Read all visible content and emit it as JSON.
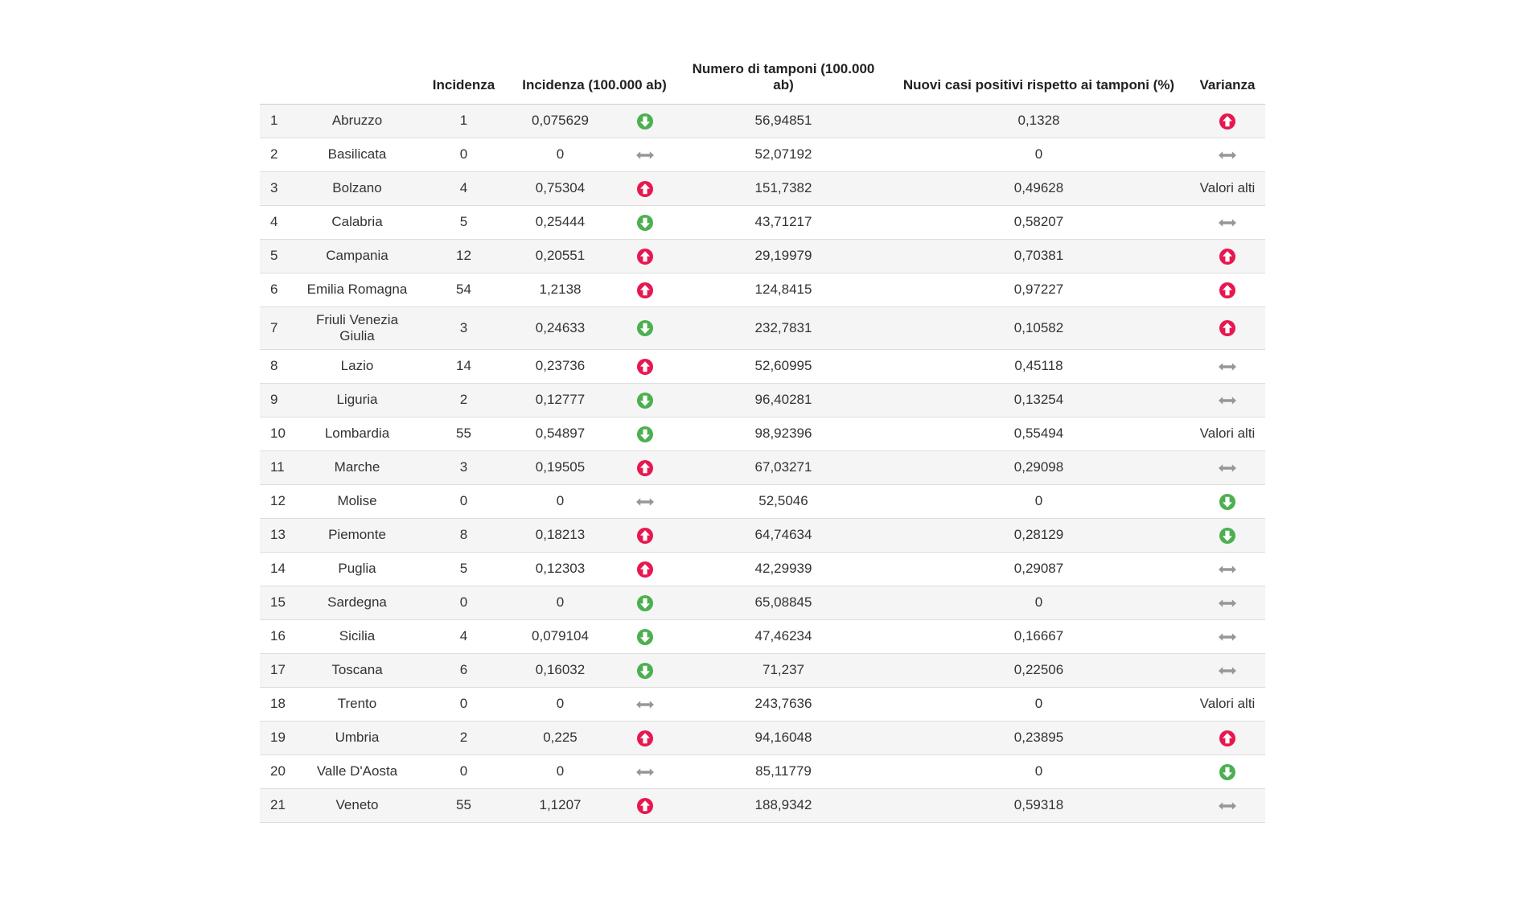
{
  "table": {
    "headers": {
      "incidenza": "Incidenza",
      "incidenza_100k": "Incidenza (100.000 ab)",
      "tamponi": "Numero di tamponi (100.000 ab)",
      "nuovi_casi": "Nuovi casi positivi rispetto ai tamponi (%)",
      "varianza": "Varianza"
    },
    "high_values_label": "Valori alti",
    "status_colors": {
      "up": "#e8174f",
      "down": "#4caf50",
      "stable": "#979797"
    },
    "icon_names": {
      "up": "arrow-circle-up-icon",
      "down": "arrow-circle-down-icon",
      "stable": "arrows-horizontal-icon"
    },
    "rows": [
      {
        "index": "1",
        "region": "Abruzzo",
        "incidenza": "1",
        "incidenza_100k": "0,075629",
        "trend": "down",
        "tamponi": "56,94851",
        "nuovi_casi": "0,1328",
        "varianza": "up"
      },
      {
        "index": "2",
        "region": "Basilicata",
        "incidenza": "0",
        "incidenza_100k": "0",
        "trend": "stable",
        "tamponi": "52,07192",
        "nuovi_casi": "0",
        "varianza": "stable"
      },
      {
        "index": "3",
        "region": "Bolzano",
        "incidenza": "4",
        "incidenza_100k": "0,75304",
        "trend": "up",
        "tamponi": "151,7382",
        "nuovi_casi": "0,49628",
        "varianza": "valori-alti"
      },
      {
        "index": "4",
        "region": "Calabria",
        "incidenza": "5",
        "incidenza_100k": "0,25444",
        "trend": "down",
        "tamponi": "43,71217",
        "nuovi_casi": "0,58207",
        "varianza": "stable"
      },
      {
        "index": "5",
        "region": "Campania",
        "incidenza": "12",
        "incidenza_100k": "0,20551",
        "trend": "up",
        "tamponi": "29,19979",
        "nuovi_casi": "0,70381",
        "varianza": "up"
      },
      {
        "index": "6",
        "region": "Emilia Romagna",
        "incidenza": "54",
        "incidenza_100k": "1,2138",
        "trend": "up",
        "tamponi": "124,8415",
        "nuovi_casi": "0,97227",
        "varianza": "up"
      },
      {
        "index": "7",
        "region": "Friuli Venezia Giulia",
        "incidenza": "3",
        "incidenza_100k": "0,24633",
        "trend": "down",
        "tamponi": "232,7831",
        "nuovi_casi": "0,10582",
        "varianza": "up"
      },
      {
        "index": "8",
        "region": "Lazio",
        "incidenza": "14",
        "incidenza_100k": "0,23736",
        "trend": "up",
        "tamponi": "52,60995",
        "nuovi_casi": "0,45118",
        "varianza": "stable"
      },
      {
        "index": "9",
        "region": "Liguria",
        "incidenza": "2",
        "incidenza_100k": "0,12777",
        "trend": "down",
        "tamponi": "96,40281",
        "nuovi_casi": "0,13254",
        "varianza": "stable"
      },
      {
        "index": "10",
        "region": "Lombardia",
        "incidenza": "55",
        "incidenza_100k": "0,54897",
        "trend": "down",
        "tamponi": "98,92396",
        "nuovi_casi": "0,55494",
        "varianza": "valori-alti"
      },
      {
        "index": "11",
        "region": "Marche",
        "incidenza": "3",
        "incidenza_100k": "0,19505",
        "trend": "up",
        "tamponi": "67,03271",
        "nuovi_casi": "0,29098",
        "varianza": "stable"
      },
      {
        "index": "12",
        "region": "Molise",
        "incidenza": "0",
        "incidenza_100k": "0",
        "trend": "stable",
        "tamponi": "52,5046",
        "nuovi_casi": "0",
        "varianza": "down"
      },
      {
        "index": "13",
        "region": "Piemonte",
        "incidenza": "8",
        "incidenza_100k": "0,18213",
        "trend": "up",
        "tamponi": "64,74634",
        "nuovi_casi": "0,28129",
        "varianza": "down"
      },
      {
        "index": "14",
        "region": "Puglia",
        "incidenza": "5",
        "incidenza_100k": "0,12303",
        "trend": "up",
        "tamponi": "42,29939",
        "nuovi_casi": "0,29087",
        "varianza": "stable"
      },
      {
        "index": "15",
        "region": "Sardegna",
        "incidenza": "0",
        "incidenza_100k": "0",
        "trend": "down",
        "tamponi": "65,08845",
        "nuovi_casi": "0",
        "varianza": "stable"
      },
      {
        "index": "16",
        "region": "Sicilia",
        "incidenza": "4",
        "incidenza_100k": "0,079104",
        "trend": "down",
        "tamponi": "47,46234",
        "nuovi_casi": "0,16667",
        "varianza": "stable"
      },
      {
        "index": "17",
        "region": "Toscana",
        "incidenza": "6",
        "incidenza_100k": "0,16032",
        "trend": "down",
        "tamponi": "71,237",
        "nuovi_casi": "0,22506",
        "varianza": "stable"
      },
      {
        "index": "18",
        "region": "Trento",
        "incidenza": "0",
        "incidenza_100k": "0",
        "trend": "stable",
        "tamponi": "243,7636",
        "nuovi_casi": "0",
        "varianza": "valori-alti"
      },
      {
        "index": "19",
        "region": "Umbria",
        "incidenza": "2",
        "incidenza_100k": "0,225",
        "trend": "up",
        "tamponi": "94,16048",
        "nuovi_casi": "0,23895",
        "varianza": "up"
      },
      {
        "index": "20",
        "region": "Valle D'Aosta",
        "incidenza": "0",
        "incidenza_100k": "0",
        "trend": "stable",
        "tamponi": "85,11779",
        "nuovi_casi": "0",
        "varianza": "down"
      },
      {
        "index": "21",
        "region": "Veneto",
        "incidenza": "55",
        "incidenza_100k": "1,1207",
        "trend": "up",
        "tamponi": "188,9342",
        "nuovi_casi": "0,59318",
        "varianza": "stable"
      }
    ]
  }
}
